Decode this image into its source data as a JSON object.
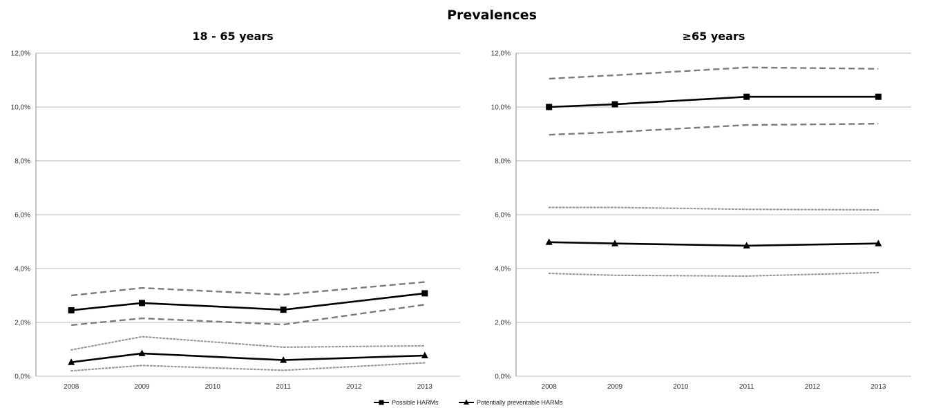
{
  "chart_data": {
    "type": "line",
    "title": "Prevalences",
    "legend": {
      "placement": "bottom-center",
      "entries": [
        {
          "name": "Possible HARMs",
          "marker": "square"
        },
        {
          "name": "Potentially preventable HARMs",
          "marker": "triangle"
        }
      ]
    },
    "colors": {
      "main_line": "#000000",
      "ci_possible": "#7a7a7a",
      "ci_preventable": "#9a9a9a",
      "grid": "#b8b8b8"
    },
    "panels": [
      {
        "subtitle": "18 - 65 years",
        "x": [
          2008,
          2009,
          2010,
          2011,
          2012,
          2013
        ],
        "ylim": [
          0,
          12
        ],
        "yticks": [
          "0,0%",
          "2,0%",
          "4,0%",
          "6,0%",
          "8,0%",
          "10,0%",
          "12,0%"
        ],
        "grid": true,
        "series": [
          {
            "name": "Possible HARMs",
            "marker": "square",
            "style": "solid",
            "x": [
              2008,
              2009,
              2011,
              2013
            ],
            "y": [
              2.45,
              2.72,
              2.47,
              3.08
            ]
          },
          {
            "name": "Potentially preventable HARMs",
            "marker": "triangle",
            "style": "solid",
            "x": [
              2008,
              2009,
              2011,
              2013
            ],
            "y": [
              0.52,
              0.85,
              0.6,
              0.77
            ]
          },
          {
            "role": "ci-upper",
            "of": "Possible HARMs",
            "style": "dashed",
            "x": [
              2008,
              2009,
              2011,
              2013
            ],
            "y": [
              3.0,
              3.28,
              3.03,
              3.5
            ]
          },
          {
            "role": "ci-lower",
            "of": "Possible HARMs",
            "style": "dashed",
            "x": [
              2008,
              2009,
              2011,
              2013
            ],
            "y": [
              1.9,
              2.15,
              1.92,
              2.66
            ]
          },
          {
            "role": "ci-upper",
            "of": "Potentially preventable HARMs",
            "style": "dotted",
            "x": [
              2008,
              2009,
              2011,
              2013
            ],
            "y": [
              0.98,
              1.47,
              1.08,
              1.13
            ]
          },
          {
            "role": "ci-lower",
            "of": "Potentially preventable HARMs",
            "style": "dotted",
            "x": [
              2008,
              2009,
              2011,
              2013
            ],
            "y": [
              0.2,
              0.4,
              0.22,
              0.5
            ]
          }
        ]
      },
      {
        "subtitle": "≥65 years",
        "x": [
          2008,
          2009,
          2010,
          2011,
          2012,
          2013
        ],
        "ylim": [
          0,
          12
        ],
        "yticks": [
          "0,0%",
          "2,0%",
          "4,0%",
          "6,0%",
          "8,0%",
          "10,0%",
          "12,0%"
        ],
        "grid": true,
        "series": [
          {
            "name": "Possible HARMs",
            "marker": "square",
            "style": "solid",
            "x": [
              2008,
              2009,
              2011,
              2013
            ],
            "y": [
              10.0,
              10.1,
              10.38,
              10.38
            ]
          },
          {
            "name": "Potentially preventable HARMs",
            "marker": "triangle",
            "style": "solid",
            "x": [
              2008,
              2009,
              2011,
              2013
            ],
            "y": [
              4.98,
              4.93,
              4.85,
              4.93
            ]
          },
          {
            "role": "ci-upper",
            "of": "Possible HARMs",
            "style": "dashed",
            "x": [
              2008,
              2009,
              2011,
              2013
            ],
            "y": [
              11.05,
              11.18,
              11.47,
              11.42
            ]
          },
          {
            "role": "ci-lower",
            "of": "Possible HARMs",
            "style": "dashed",
            "x": [
              2008,
              2009,
              2011,
              2013
            ],
            "y": [
              8.97,
              9.07,
              9.33,
              9.38
            ]
          },
          {
            "role": "ci-upper",
            "of": "Potentially preventable HARMs",
            "style": "dotted",
            "x": [
              2008,
              2009,
              2011,
              2013
            ],
            "y": [
              6.27,
              6.27,
              6.2,
              6.18
            ]
          },
          {
            "role": "ci-lower",
            "of": "Potentially preventable HARMs",
            "style": "dotted",
            "x": [
              2008,
              2009,
              2011,
              2013
            ],
            "y": [
              3.82,
              3.75,
              3.72,
              3.85
            ]
          }
        ]
      }
    ]
  }
}
